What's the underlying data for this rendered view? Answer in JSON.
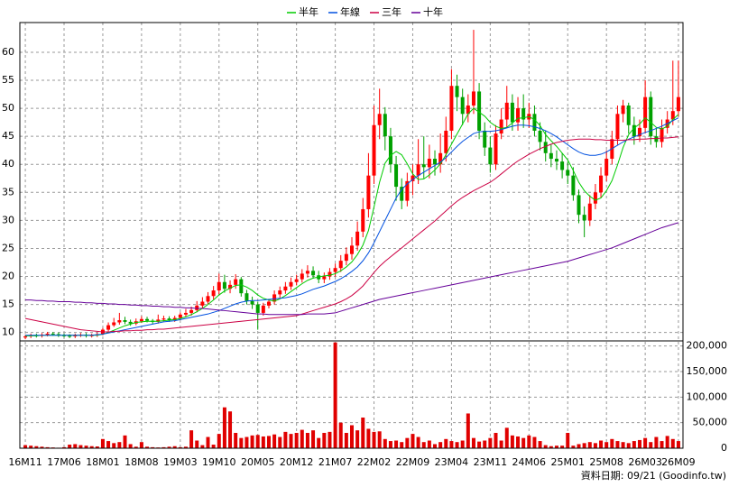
{
  "chart_data": {
    "type": "candlestick",
    "note": "資料日期: 09/21 (Goodinfo.tw)",
    "categories": [
      "16M11",
      null,
      null,
      null,
      null,
      null,
      null,
      "17M06",
      null,
      null,
      null,
      null,
      null,
      null,
      "18M01",
      null,
      null,
      null,
      null,
      null,
      null,
      "18M08",
      null,
      null,
      null,
      null,
      null,
      null,
      "19M03",
      null,
      null,
      null,
      null,
      null,
      null,
      "19M10",
      null,
      null,
      null,
      null,
      null,
      null,
      "20M05",
      null,
      null,
      null,
      null,
      null,
      null,
      "20M12",
      null,
      null,
      null,
      null,
      null,
      null,
      "21M07",
      null,
      null,
      null,
      null,
      null,
      null,
      "22M02",
      null,
      null,
      null,
      null,
      null,
      null,
      "22M09",
      null,
      null,
      null,
      null,
      null,
      null,
      "23M04",
      null,
      null,
      null,
      null,
      null,
      null,
      "23M11",
      null,
      null,
      null,
      null,
      null,
      null,
      "24M06",
      null,
      null,
      null,
      null,
      null,
      null,
      "25M01",
      null,
      null,
      null,
      null,
      null,
      null,
      "25M08",
      null,
      null,
      null,
      null,
      null,
      null,
      "26M03",
      null,
      null,
      null,
      null,
      null,
      "26M09"
    ],
    "open": [
      9.1,
      9.3,
      9.5,
      9.4,
      9.6,
      9.8,
      9.7,
      9.5,
      9.4,
      9.3,
      9.5,
      9.6,
      9.4,
      9.5,
      9.7,
      10.5,
      11.3,
      11.8,
      12.2,
      11.9,
      11.6,
      12.0,
      12.4,
      12.1,
      11.9,
      12.3,
      12.5,
      12.2,
      12.6,
      13.2,
      13.5,
      14.0,
      14.8,
      15.5,
      16.5,
      17.5,
      19.0,
      17.8,
      18.5,
      19.5,
      17.0,
      15.6,
      15.0,
      13.5,
      14.8,
      15.5,
      16.8,
      17.5,
      18.2,
      19.0,
      19.5,
      20.5,
      21.0,
      20.2,
      19.5,
      20.0,
      20.8,
      21.5,
      22.8,
      24.0,
      25.5,
      28.0,
      32.0,
      38.0,
      47.0,
      49.0,
      45.0,
      40.0,
      36.0,
      33.5,
      37.0,
      38.0,
      40.0,
      39.5,
      41.0,
      40.0,
      42.0,
      46.0,
      54.0,
      52.0,
      49.0,
      50.5,
      53.0,
      46.0,
      43.0,
      40.0,
      45.5,
      48.0,
      51.0,
      47.5,
      50.0,
      48.0,
      49.0,
      46.0,
      44.0,
      42.0,
      41.0,
      40.5,
      39.0,
      38.0,
      34.5,
      31.0,
      30.0,
      33.0,
      35.0,
      38.0,
      41.0,
      44.5,
      49.0,
      50.5,
      47.0,
      45.0,
      46.5,
      52.0,
      45.0,
      44.0,
      46.5,
      48.0,
      49.5
    ],
    "high": [
      9.6,
      9.8,
      9.8,
      9.9,
      10.1,
      10.1,
      10.0,
      9.8,
      9.7,
      9.8,
      9.9,
      9.9,
      9.8,
      10.0,
      10.8,
      11.8,
      12.6,
      13.5,
      12.8,
      12.3,
      12.5,
      12.9,
      12.8,
      12.4,
      13.2,
      13.0,
      12.9,
      13.0,
      13.6,
      14.2,
      14.6,
      15.6,
      16.3,
      17.2,
      18.3,
      20.5,
      20.3,
      19.3,
      20.4,
      19.9,
      17.6,
      16.4,
      15.5,
      15.3,
      16.0,
      17.5,
      18.2,
      19.0,
      19.8,
      20.3,
      21.3,
      22.0,
      21.8,
      21.0,
      20.7,
      21.5,
      22.3,
      23.8,
      25.2,
      27.0,
      29.8,
      34.0,
      42.0,
      50.5,
      53.5,
      50.2,
      46.5,
      41.5,
      37.5,
      38.5,
      40.0,
      44.5,
      45.0,
      43.5,
      42.5,
      45.5,
      48.5,
      57.0,
      56.0,
      53.5,
      52.5,
      64.0,
      54.5,
      47.5,
      45.0,
      47.0,
      50.0,
      54.0,
      52.5,
      52.0,
      52.5,
      51.0,
      50.5,
      47.5,
      46.0,
      43.5,
      42.5,
      42.0,
      40.5,
      39.5,
      35.5,
      32.5,
      34.5,
      36.5,
      39.5,
      42.5,
      46.0,
      50.5,
      51.5,
      51.0,
      48.5,
      48.0,
      55.0,
      53.0,
      46.5,
      48.0,
      49.5,
      58.5,
      58.5
    ],
    "low": [
      8.8,
      9.0,
      9.1,
      9.1,
      9.3,
      9.4,
      9.2,
      9.1,
      9.0,
      9.0,
      9.2,
      9.1,
      9.1,
      9.2,
      9.5,
      10.2,
      11.0,
      11.4,
      11.5,
      11.2,
      11.3,
      11.7,
      11.8,
      11.5,
      11.6,
      12.0,
      11.9,
      11.9,
      12.2,
      12.8,
      13.0,
      13.6,
      14.3,
      15.0,
      15.9,
      16.8,
      17.1,
      17.0,
      17.8,
      16.4,
      15.0,
      14.2,
      10.5,
      13.0,
      14.3,
      15.0,
      16.2,
      16.9,
      17.6,
      18.4,
      18.9,
      19.8,
      19.6,
      18.8,
      18.8,
      19.4,
      20.0,
      20.8,
      22.0,
      23.0,
      24.6,
      27.0,
      30.5,
      36.5,
      44.5,
      42.5,
      38.5,
      33.5,
      32.0,
      32.5,
      34.5,
      36.5,
      37.5,
      37.5,
      38.0,
      38.5,
      40.5,
      44.5,
      49.5,
      47.0,
      47.5,
      49.0,
      44.5,
      41.5,
      38.5,
      39.0,
      44.5,
      46.5,
      46.0,
      46.0,
      46.5,
      46.5,
      45.0,
      42.5,
      40.5,
      39.5,
      39.0,
      37.5,
      36.5,
      33.5,
      29.5,
      27.0,
      29.0,
      32.0,
      34.0,
      37.0,
      40.0,
      43.5,
      47.5,
      45.5,
      43.5,
      44.0,
      45.5,
      43.5,
      43.0,
      43.0,
      45.5,
      47.0,
      48.5
    ],
    "close": [
      9.3,
      9.5,
      9.4,
      9.6,
      9.8,
      9.7,
      9.5,
      9.4,
      9.3,
      9.5,
      9.6,
      9.4,
      9.5,
      9.7,
      10.5,
      11.3,
      11.8,
      12.2,
      11.9,
      11.6,
      12.0,
      12.4,
      12.1,
      11.9,
      12.3,
      12.5,
      12.2,
      12.6,
      13.2,
      13.5,
      14.0,
      14.8,
      15.5,
      16.5,
      17.5,
      19.0,
      17.8,
      18.5,
      19.5,
      17.0,
      15.6,
      15.0,
      13.5,
      14.8,
      15.5,
      16.8,
      17.5,
      18.2,
      19.0,
      19.5,
      20.5,
      21.0,
      20.2,
      19.5,
      20.0,
      20.8,
      21.5,
      22.8,
      24.0,
      25.5,
      28.0,
      32.0,
      38.0,
      47.0,
      49.0,
      45.0,
      40.0,
      36.0,
      33.5,
      37.0,
      38.0,
      40.0,
      39.5,
      41.0,
      40.0,
      42.0,
      46.0,
      54.0,
      52.0,
      49.0,
      50.5,
      53.0,
      46.0,
      43.0,
      40.0,
      45.5,
      48.0,
      51.0,
      47.5,
      50.0,
      48.0,
      49.0,
      46.0,
      44.0,
      42.0,
      41.0,
      40.5,
      39.0,
      38.0,
      34.5,
      31.0,
      30.0,
      33.0,
      35.0,
      38.0,
      41.0,
      44.5,
      49.0,
      50.5,
      47.0,
      45.0,
      46.5,
      52.0,
      45.0,
      44.0,
      46.5,
      48.0,
      49.5,
      52.0
    ],
    "up_color": "#ff0000",
    "down_color": "#00a000",
    "series": [
      {
        "name": "半年",
        "color": "#00cc00",
        "values": [
          9.4,
          9.4,
          9.4,
          9.5,
          9.5,
          9.5,
          9.5,
          9.5,
          9.5,
          9.5,
          9.5,
          9.5,
          9.5,
          9.5,
          9.7,
          10.0,
          10.4,
          10.8,
          11.2,
          11.5,
          11.8,
          11.9,
          12.0,
          12.0,
          12.0,
          12.1,
          12.2,
          12.3,
          12.5,
          12.8,
          13.2,
          13.7,
          14.3,
          15.0,
          15.8,
          16.7,
          17.4,
          17.9,
          18.4,
          18.5,
          18.1,
          17.5,
          16.7,
          16.1,
          15.8,
          15.6,
          16.0,
          16.6,
          17.3,
          18.0,
          18.7,
          19.3,
          19.7,
          19.9,
          20.1,
          20.2,
          20.5,
          21.0,
          21.7,
          22.6,
          23.9,
          25.6,
          28.2,
          32.4,
          36.8,
          40.2,
          41.6,
          42.3,
          41.7,
          40.1,
          38.3,
          37.3,
          37.4,
          38.1,
          39.0,
          40.1,
          41.7,
          43.6,
          45.4,
          47.2,
          49.0,
          50.0,
          49.3,
          48.6,
          47.5,
          46.8,
          46.4,
          46.6,
          47.4,
          48.2,
          48.3,
          48.5,
          48.0,
          46.9,
          45.3,
          44.2,
          43.2,
          42.0,
          40.8,
          38.9,
          36.8,
          35.3,
          34.3,
          33.6,
          34.0,
          35.3,
          37.1,
          39.9,
          43.0,
          45.3,
          46.5,
          47.2,
          48.3,
          47.5,
          46.6,
          46.3,
          46.8,
          48.0,
          48.9
        ]
      },
      {
        "name": "年線",
        "color": "#0050e0",
        "values": [
          9.5,
          9.5,
          9.5,
          9.5,
          9.5,
          9.5,
          9.5,
          9.5,
          9.5,
          9.5,
          9.5,
          9.5,
          9.5,
          9.6,
          9.7,
          9.9,
          10.1,
          10.3,
          10.5,
          10.7,
          10.9,
          11.1,
          11.3,
          11.5,
          11.7,
          11.9,
          12.0,
          12.1,
          12.3,
          12.5,
          12.7,
          12.9,
          13.1,
          13.3,
          13.6,
          13.9,
          14.3,
          14.7,
          15.1,
          15.4,
          15.6,
          15.7,
          15.7,
          15.8,
          15.9,
          16.0,
          16.1,
          16.2,
          16.4,
          16.6,
          16.9,
          17.3,
          17.7,
          18.0,
          18.3,
          18.7,
          19.1,
          19.6,
          20.2,
          20.9,
          21.7,
          22.8,
          24.2,
          26.0,
          28.0,
          30.0,
          32.0,
          34.0,
          35.5,
          36.5,
          37.3,
          38.0,
          38.6,
          39.2,
          39.8,
          40.4,
          41.2,
          42.2,
          43.2,
          44.1,
          44.8,
          45.5,
          45.8,
          45.9,
          45.9,
          46.0,
          46.2,
          46.5,
          46.8,
          47.0,
          47.0,
          46.9,
          46.7,
          46.4,
          46.0,
          45.5,
          44.9,
          44.2,
          43.5,
          42.8,
          42.2,
          41.8,
          41.6,
          41.6,
          41.8,
          42.2,
          42.8,
          43.4,
          44.0,
          44.5,
          44.9,
          45.3,
          45.7,
          46.0,
          46.4,
          46.8,
          47.3,
          47.8,
          48.3
        ]
      },
      {
        "name": "三年",
        "color": "#cc0044",
        "values": [
          12.5,
          12.3,
          12.1,
          11.9,
          11.7,
          11.5,
          11.3,
          11.1,
          10.9,
          10.7,
          10.5,
          10.4,
          10.3,
          10.2,
          10.1,
          10.1,
          10.2,
          10.2,
          10.3,
          10.3,
          10.4,
          10.4,
          10.5,
          10.5,
          10.6,
          10.6,
          10.7,
          10.8,
          10.9,
          11.0,
          11.1,
          11.2,
          11.3,
          11.4,
          11.5,
          11.6,
          11.7,
          11.8,
          11.9,
          12.0,
          12.1,
          12.2,
          12.3,
          12.4,
          12.5,
          12.6,
          12.7,
          12.8,
          12.9,
          13.0,
          13.3,
          13.6,
          13.9,
          14.2,
          14.5,
          14.8,
          15.1,
          15.5,
          16.0,
          16.6,
          17.4,
          18.3,
          19.5,
          20.7,
          21.8,
          22.7,
          23.5,
          24.3,
          25.1,
          25.9,
          26.7,
          27.5,
          28.3,
          29.1,
          29.9,
          30.8,
          31.7,
          32.6,
          33.4,
          34.1,
          34.7,
          35.3,
          35.8,
          36.3,
          36.8,
          37.5,
          38.3,
          39.1,
          39.9,
          40.6,
          41.2,
          41.8,
          42.3,
          42.8,
          43.2,
          43.6,
          43.9,
          44.1,
          44.3,
          44.4,
          44.5,
          44.5,
          44.5,
          44.4,
          44.4,
          44.3,
          44.3,
          44.3,
          44.3,
          44.4,
          44.4,
          44.5,
          44.5,
          44.6,
          44.6,
          44.7,
          44.7,
          44.8,
          44.9
        ]
      },
      {
        "name": "十年",
        "color": "#660099",
        "values": [
          15.8,
          15.8,
          15.7,
          15.7,
          15.6,
          15.6,
          15.5,
          15.5,
          15.5,
          15.4,
          15.4,
          15.3,
          15.3,
          15.2,
          15.2,
          15.1,
          15.1,
          15.0,
          15.0,
          14.9,
          14.9,
          14.8,
          14.8,
          14.7,
          14.7,
          14.6,
          14.6,
          14.5,
          14.5,
          14.4,
          14.4,
          14.3,
          14.3,
          14.2,
          14.1,
          14.0,
          13.9,
          13.8,
          13.7,
          13.6,
          13.5,
          13.4,
          13.3,
          13.3,
          13.2,
          13.2,
          13.2,
          13.2,
          13.2,
          13.2,
          13.2,
          13.3,
          13.3,
          13.3,
          13.3,
          13.4,
          13.5,
          13.8,
          14.1,
          14.4,
          14.7,
          15.0,
          15.3,
          15.6,
          15.9,
          16.1,
          16.3,
          16.5,
          16.7,
          16.9,
          17.1,
          17.3,
          17.5,
          17.7,
          17.9,
          18.1,
          18.3,
          18.5,
          18.7,
          18.9,
          19.1,
          19.3,
          19.5,
          19.7,
          19.9,
          20.1,
          20.3,
          20.5,
          20.7,
          20.9,
          21.1,
          21.3,
          21.5,
          21.7,
          21.9,
          22.1,
          22.3,
          22.5,
          22.7,
          23.0,
          23.3,
          23.6,
          23.9,
          24.2,
          24.5,
          24.8,
          25.1,
          25.5,
          25.9,
          26.3,
          26.7,
          27.1,
          27.5,
          27.9,
          28.3,
          28.7,
          29.0,
          29.3,
          29.6
        ]
      }
    ],
    "volume": {
      "color": "#e00000",
      "axis": "y2",
      "values": [
        6000,
        5000,
        4000,
        3000,
        2000,
        1500,
        1000,
        2000,
        7000,
        8000,
        6000,
        5000,
        4000,
        3500,
        18000,
        14000,
        10000,
        12000,
        25000,
        8000,
        3000,
        12000,
        3000,
        2000,
        1500,
        2000,
        3000,
        4000,
        2000,
        3000,
        35000,
        15000,
        6000,
        22000,
        7000,
        28000,
        80000,
        72000,
        30000,
        20000,
        22000,
        25000,
        26000,
        23000,
        24000,
        27000,
        22000,
        32000,
        28000,
        30000,
        36000,
        30000,
        35000,
        20000,
        30000,
        32000,
        207000,
        50000,
        30000,
        45000,
        35000,
        60000,
        38000,
        32000,
        33000,
        18000,
        14000,
        15000,
        12000,
        20000,
        28000,
        22000,
        12000,
        15000,
        8000,
        12000,
        18000,
        14000,
        12000,
        15000,
        68000,
        20000,
        13000,
        15000,
        20000,
        30000,
        15000,
        40000,
        25000,
        23000,
        20000,
        25000,
        22000,
        14000,
        6000,
        4000,
        5000,
        5000,
        30000,
        5000,
        8000,
        10000,
        12000,
        10000,
        15000,
        12000,
        18000,
        14000,
        12000,
        10000,
        14000,
        16000,
        20000,
        12000,
        22000,
        14000,
        24000,
        18000,
        14000
      ]
    },
    "ylim": [
      8.5,
      65.3
    ],
    "yticks": [
      10,
      15,
      20,
      25,
      30,
      35,
      40,
      45,
      50,
      55,
      60
    ],
    "y2lim": [
      0,
      210000
    ],
    "y2ticks": [
      0,
      {
        "value": 50000,
        "label": "50,000"
      },
      {
        "value": 100000,
        "label": "100,000"
      },
      {
        "value": 150000,
        "label": "150,000"
      },
      {
        "value": 200000,
        "label": "200,000"
      }
    ],
    "grid": true,
    "legend": "top"
  }
}
